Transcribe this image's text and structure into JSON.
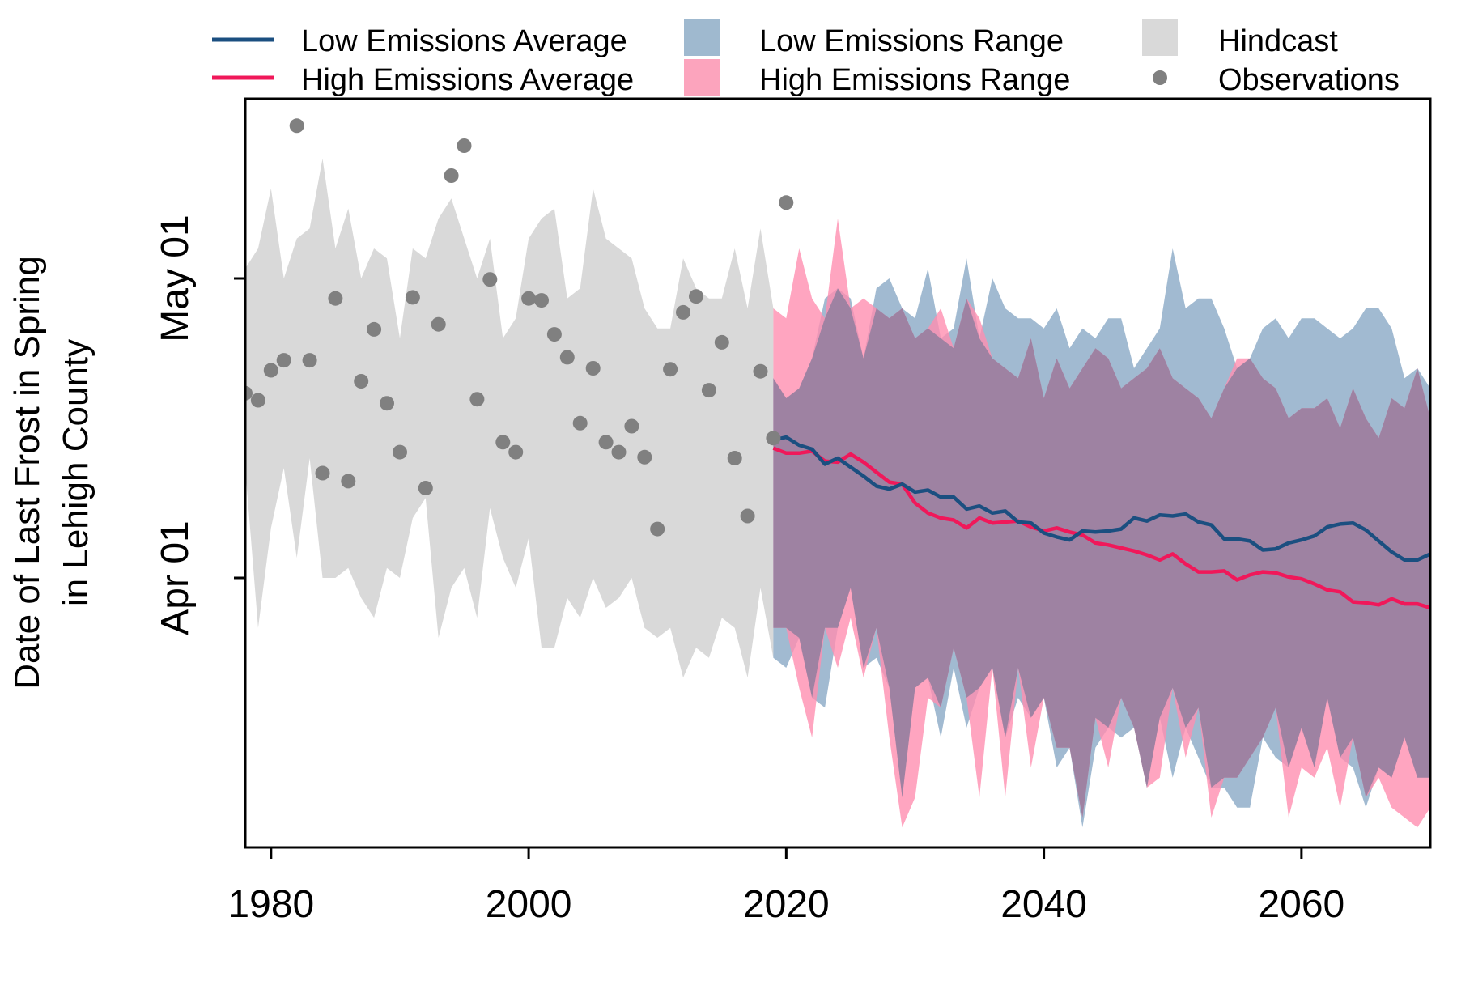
{
  "chart_data": {
    "type": "area",
    "ylabel": [
      "Date of Last Frost in Spring",
      "in Lehigh County"
    ],
    "x_ticks": [
      1980,
      2000,
      2020,
      2040,
      2060
    ],
    "xlim": [
      1978,
      2070
    ],
    "y_ticks": [
      {
        "day": 91,
        "label": "Apr 01"
      },
      {
        "day": 121,
        "label": "May 01"
      }
    ],
    "ylim_day_of_year": [
      64,
      139
    ],
    "grid": false,
    "legend": {
      "placement": "top, outside plot, 3 columns",
      "items": [
        {
          "key": "low_avg",
          "label": "Low Emissions Average",
          "swatch": "line",
          "color": "#1b4f80"
        },
        {
          "key": "high_avg",
          "label": "High Emissions Average",
          "swatch": "line",
          "color": "#f0185a"
        },
        {
          "key": "low_range",
          "label": "Low Emissions Range",
          "swatch": "box",
          "color": "#9fb9cf"
        },
        {
          "key": "high_range",
          "label": "High Emissions Range",
          "swatch": "box",
          "color": "#fca4bd"
        },
        {
          "key": "hindcast",
          "label": "Hindcast",
          "swatch": "box",
          "color": "#d9d9d9"
        },
        {
          "key": "obs",
          "label": "Observations",
          "swatch": "dot",
          "color": "#808080"
        }
      ]
    },
    "colors": {
      "hindcast": "#d9d9d9",
      "low_range": "#8aa9c6",
      "high_range": "#ff8fb0",
      "overlap": "#9e82a2",
      "low_avg": "#1b4f80",
      "high_avg": "#f0185a",
      "observations": "#808080"
    },
    "hindcast": {
      "x": [
        1978,
        1979,
        1980,
        1981,
        1982,
        1983,
        1984,
        1985,
        1986,
        1987,
        1988,
        1989,
        1990,
        1991,
        1992,
        1993,
        1994,
        1995,
        1996,
        1997,
        1998,
        1999,
        2000,
        2001,
        2002,
        2003,
        2004,
        2005,
        2006,
        2007,
        2008,
        2009,
        2010,
        2011,
        2012,
        2013,
        2014,
        2015,
        2016,
        2017,
        2018,
        2019
      ],
      "upper": [
        122,
        124,
        130,
        121,
        125,
        126,
        133,
        124,
        128,
        121,
        124,
        123,
        115,
        124,
        123,
        127,
        129,
        125,
        121,
        125,
        115,
        117,
        125,
        127,
        128,
        119,
        120,
        130,
        125,
        124,
        123,
        118,
        116,
        116,
        123,
        120,
        119,
        119,
        124,
        118,
        126,
        118
      ],
      "lower": [
        102,
        86,
        96,
        102,
        93,
        103,
        91,
        91,
        92,
        89,
        87,
        92,
        91,
        97,
        99,
        85,
        90,
        92,
        87,
        98,
        93,
        90,
        95,
        84,
        84,
        89,
        87,
        91,
        88,
        89,
        91,
        86,
        85,
        86,
        81,
        84,
        83,
        87,
        86,
        81,
        90,
        83
      ]
    },
    "low_range": {
      "x": [
        2019,
        2020,
        2021,
        2022,
        2023,
        2024,
        2025,
        2026,
        2027,
        2028,
        2029,
        2030,
        2031,
        2032,
        2033,
        2034,
        2035,
        2036,
        2037,
        2038,
        2039,
        2040,
        2041,
        2042,
        2043,
        2044,
        2045,
        2046,
        2047,
        2048,
        2049,
        2050,
        2051,
        2052,
        2053,
        2054,
        2055,
        2056,
        2057,
        2058,
        2059,
        2060,
        2061,
        2062,
        2063,
        2064,
        2065,
        2066,
        2067,
        2068,
        2069,
        2070
      ],
      "upper": [
        111,
        109,
        110,
        113,
        119,
        120,
        119,
        113,
        120,
        121,
        118,
        117,
        122,
        115,
        116,
        123,
        115,
        121,
        118,
        117,
        117,
        116,
        118,
        114,
        116,
        115,
        117,
        117,
        112,
        114,
        116,
        124,
        118,
        119,
        119,
        116,
        112,
        113,
        116,
        117,
        115,
        117,
        117,
        116,
        115,
        116,
        118,
        118,
        116,
        111,
        112,
        110
      ],
      "lower": [
        83,
        82,
        85,
        79,
        78,
        86,
        90,
        82,
        83,
        80,
        69,
        80,
        81,
        75,
        82,
        76,
        80,
        82,
        75,
        79,
        77,
        79,
        72,
        74,
        66,
        74,
        76,
        75,
        76,
        70,
        77,
        71,
        76,
        73,
        70,
        70,
        68,
        68,
        75,
        73,
        72,
        76,
        72,
        79,
        73,
        72,
        68,
        72,
        71,
        75,
        71,
        71
      ]
    },
    "high_range": {
      "x": [
        2019,
        2020,
        2021,
        2022,
        2023,
        2024,
        2025,
        2026,
        2027,
        2028,
        2029,
        2030,
        2031,
        2032,
        2033,
        2034,
        2035,
        2036,
        2037,
        2038,
        2039,
        2040,
        2041,
        2042,
        2043,
        2044,
        2045,
        2046,
        2047,
        2048,
        2049,
        2050,
        2051,
        2052,
        2053,
        2054,
        2055,
        2056,
        2057,
        2058,
        2059,
        2060,
        2061,
        2062,
        2063,
        2064,
        2065,
        2066,
        2067,
        2068,
        2069,
        2070
      ],
      "upper": [
        118,
        117,
        124,
        119,
        117,
        127,
        118,
        119,
        118,
        117,
        118,
        115,
        116,
        118,
        114,
        119,
        117,
        113,
        112,
        111,
        115,
        109,
        113,
        110,
        112,
        114,
        113,
        110,
        111,
        112,
        114,
        111,
        110,
        109,
        107,
        110,
        113,
        113,
        111,
        110,
        107,
        108,
        108,
        109,
        106,
        110,
        107,
        105,
        109,
        108,
        112,
        107
      ],
      "lower": [
        86,
        86,
        80,
        75,
        86,
        82,
        87,
        81,
        86,
        75,
        66,
        69,
        79,
        78,
        84,
        79,
        69,
        82,
        69,
        82,
        72,
        79,
        74,
        74,
        67,
        77,
        72,
        79,
        76,
        70,
        71,
        80,
        73,
        78,
        67,
        71,
        71,
        73,
        75,
        78,
        67,
        72,
        71,
        74,
        68,
        75,
        69,
        71,
        68,
        67,
        66,
        68
      ]
    },
    "low_avg": {
      "x": [
        2019,
        2020,
        2021,
        2022,
        2023,
        2024,
        2025,
        2026,
        2027,
        2028,
        2029,
        2030,
        2031,
        2032,
        2033,
        2034,
        2035,
        2036,
        2037,
        2038,
        2039,
        2040,
        2041,
        2042,
        2043,
        2044,
        2045,
        2046,
        2047,
        2048,
        2049,
        2050,
        2051,
        2052,
        2053,
        2054,
        2055,
        2056,
        2057,
        2058,
        2059,
        2060,
        2061,
        2062,
        2063,
        2064,
        2065,
        2066,
        2067,
        2068,
        2069,
        2070
      ],
      "values": [
        104.8,
        105.1,
        104.3,
        103.9,
        102.4,
        103.0,
        102.1,
        101.2,
        100.2,
        99.9,
        100.4,
        99.6,
        99.8,
        99.1,
        99.1,
        97.9,
        98.2,
        97.5,
        97.7,
        96.6,
        96.5,
        95.5,
        95.1,
        94.8,
        95.7,
        95.6,
        95.7,
        95.9,
        97.0,
        96.7,
        97.3,
        97.2,
        97.4,
        96.6,
        96.3,
        94.9,
        94.9,
        94.7,
        93.8,
        93.9,
        94.5,
        94.8,
        95.2,
        96.1,
        96.4,
        96.5,
        95.8,
        94.7,
        93.6,
        92.8,
        92.8,
        93.4
      ]
    },
    "high_avg": {
      "x": [
        2019,
        2020,
        2021,
        2022,
        2023,
        2024,
        2025,
        2026,
        2027,
        2028,
        2029,
        2030,
        2031,
        2032,
        2033,
        2034,
        2035,
        2036,
        2037,
        2038,
        2039,
        2040,
        2041,
        2042,
        2043,
        2044,
        2045,
        2046,
        2047,
        2048,
        2049,
        2050,
        2051,
        2052,
        2053,
        2054,
        2055,
        2056,
        2057,
        2058,
        2059,
        2060,
        2061,
        2062,
        2063,
        2064,
        2065,
        2066,
        2067,
        2068,
        2069,
        2070
      ],
      "values": [
        104.0,
        103.5,
        103.5,
        103.7,
        102.7,
        102.6,
        103.4,
        102.6,
        101.6,
        100.6,
        100.4,
        98.5,
        97.5,
        97.0,
        96.8,
        96.0,
        97.0,
        96.5,
        96.6,
        96.7,
        96.1,
        95.7,
        96.0,
        95.6,
        95.3,
        94.5,
        94.3,
        94.0,
        93.7,
        93.3,
        92.8,
        93.4,
        92.4,
        91.6,
        91.6,
        91.7,
        90.8,
        91.3,
        91.6,
        91.5,
        91.1,
        90.9,
        90.4,
        89.8,
        89.6,
        88.6,
        88.5,
        88.3,
        88.9,
        88.4,
        88.4,
        88.0
      ]
    },
    "observations": {
      "x": [
        1978,
        1979,
        1980,
        1981,
        1982,
        1983,
        1984,
        1985,
        1986,
        1987,
        1988,
        1989,
        1990,
        1991,
        1992,
        1993,
        1994,
        1995,
        1996,
        1997,
        1998,
        1999,
        2000,
        2001,
        2002,
        2003,
        2004,
        2005,
        2006,
        2007,
        2008,
        2009,
        2010,
        2011,
        2012,
        2013,
        2014,
        2015,
        2016,
        2017,
        2018,
        2019,
        2020
      ],
      "y": [
        109.5,
        108.8,
        111.8,
        112.8,
        136.3,
        112.8,
        101.5,
        119.0,
        100.7,
        110.7,
        115.9,
        108.5,
        103.6,
        119.1,
        100.0,
        116.4,
        131.3,
        134.3,
        108.9,
        120.9,
        104.6,
        103.6,
        119.0,
        118.8,
        115.4,
        113.1,
        106.5,
        112.0,
        104.6,
        103.6,
        106.2,
        103.1,
        95.9,
        111.9,
        117.6,
        119.2,
        109.8,
        114.6,
        103.0,
        97.2,
        111.7,
        105.0,
        128.6
      ]
    }
  }
}
